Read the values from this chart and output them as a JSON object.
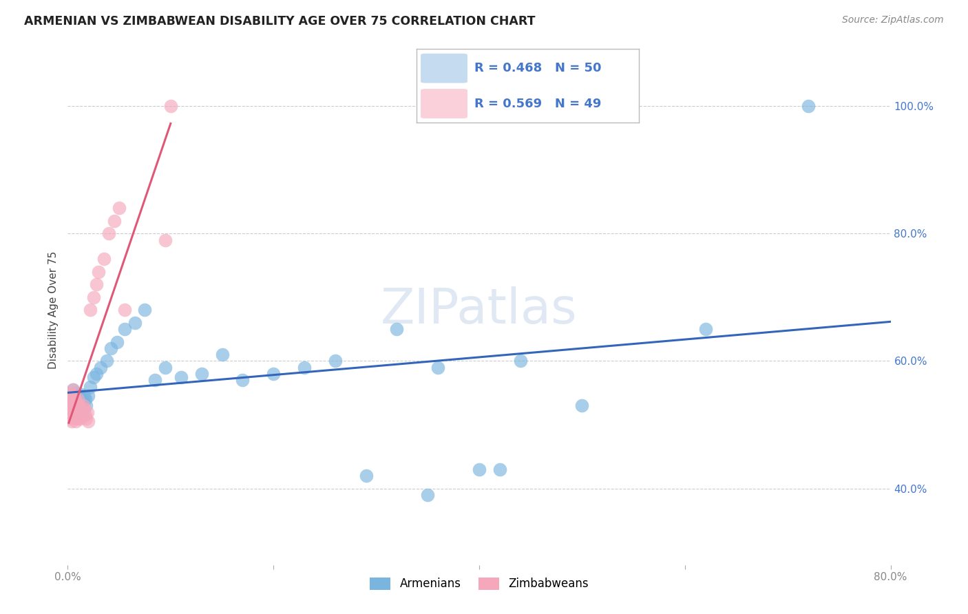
{
  "title": "ARMENIAN VS ZIMBABWEAN DISABILITY AGE OVER 75 CORRELATION CHART",
  "source": "Source: ZipAtlas.com",
  "ylabel": "Disability Age Over 75",
  "xlim": [
    0.0,
    0.8
  ],
  "ylim": [
    0.28,
    1.08
  ],
  "armenian_R": "0.468",
  "armenian_N": "50",
  "zimbabwean_R": "0.569",
  "zimbabwean_N": "49",
  "blue_color": "#7ab5e0",
  "pink_color": "#f5a8bc",
  "line_blue": "#3366bb",
  "line_pink": "#e05878",
  "legend_box_blue": "#c5dcf0",
  "legend_box_pink": "#fad0da",
  "watermark_color": "#c8d8ea",
  "armenians_x": [
    0.003,
    0.004,
    0.005,
    0.005,
    0.006,
    0.007,
    0.007,
    0.008,
    0.008,
    0.009,
    0.01,
    0.01,
    0.011,
    0.012,
    0.013,
    0.014,
    0.015,
    0.016,
    0.017,
    0.018,
    0.02,
    0.022,
    0.025,
    0.028,
    0.032,
    0.038,
    0.042,
    0.048,
    0.055,
    0.065,
    0.075,
    0.085,
    0.095,
    0.11,
    0.13,
    0.15,
    0.17,
    0.2,
    0.23,
    0.26,
    0.29,
    0.32,
    0.36,
    0.4,
    0.44,
    0.35,
    0.42,
    0.5,
    0.62,
    0.72
  ],
  "armenians_y": [
    0.535,
    0.545,
    0.525,
    0.555,
    0.54,
    0.53,
    0.55,
    0.52,
    0.545,
    0.538,
    0.53,
    0.545,
    0.54,
    0.535,
    0.548,
    0.542,
    0.538,
    0.545,
    0.54,
    0.53,
    0.545,
    0.56,
    0.575,
    0.58,
    0.59,
    0.6,
    0.62,
    0.63,
    0.65,
    0.66,
    0.68,
    0.57,
    0.59,
    0.575,
    0.58,
    0.61,
    0.57,
    0.58,
    0.59,
    0.6,
    0.42,
    0.65,
    0.59,
    0.43,
    0.6,
    0.39,
    0.43,
    0.53,
    0.65,
    1.0
  ],
  "zimbabweans_x": [
    0.001,
    0.002,
    0.002,
    0.003,
    0.003,
    0.003,
    0.004,
    0.004,
    0.004,
    0.005,
    0.005,
    0.005,
    0.006,
    0.006,
    0.006,
    0.007,
    0.007,
    0.007,
    0.008,
    0.008,
    0.008,
    0.009,
    0.009,
    0.01,
    0.01,
    0.01,
    0.011,
    0.011,
    0.012,
    0.012,
    0.013,
    0.014,
    0.015,
    0.016,
    0.017,
    0.018,
    0.019,
    0.02,
    0.022,
    0.025,
    0.028,
    0.03,
    0.035,
    0.04,
    0.045,
    0.05,
    0.055,
    0.095,
    0.1
  ],
  "zimbabweans_y": [
    0.53,
    0.51,
    0.545,
    0.52,
    0.535,
    0.55,
    0.505,
    0.525,
    0.545,
    0.52,
    0.54,
    0.555,
    0.515,
    0.53,
    0.545,
    0.51,
    0.525,
    0.54,
    0.505,
    0.52,
    0.535,
    0.515,
    0.53,
    0.51,
    0.525,
    0.54,
    0.515,
    0.53,
    0.51,
    0.525,
    0.52,
    0.515,
    0.53,
    0.525,
    0.515,
    0.51,
    0.52,
    0.505,
    0.68,
    0.7,
    0.72,
    0.74,
    0.76,
    0.8,
    0.82,
    0.84,
    0.68,
    0.79,
    1.0
  ]
}
